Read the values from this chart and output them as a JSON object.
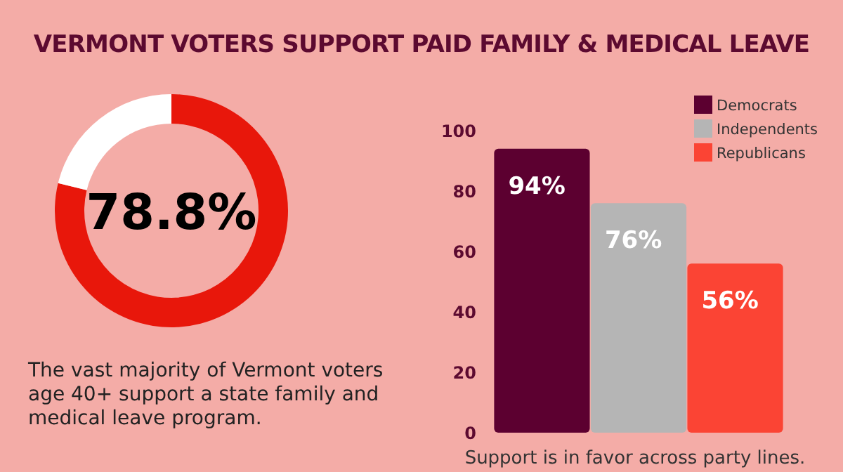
{
  "chart_data": [
    {
      "type": "donut",
      "title": "VERMONT VOTERS SUPPORT PAID FAMILY & MEDICAL LEAVE",
      "categories": [
        null,
        null
      ],
      "values": [
        78.8,
        21.2
      ],
      "colors": [
        "#e8170b",
        "#ffffff"
      ],
      "value_labels": [
        "78.8%",
        null
      ],
      "annotations": [
        "The vast majority of Vermont voters age 40+ support a state family and medical leave program."
      ]
    },
    {
      "type": "bar",
      "categories": [
        null
      ],
      "series": [
        {
          "name": "Democrats",
          "color": "#5c0030",
          "values": [
            94
          ],
          "value_labels": [
            "94%"
          ]
        },
        {
          "name": "Independents",
          "color": "#b5b5b5",
          "values": [
            76
          ],
          "value_labels": [
            "76%"
          ]
        },
        {
          "name": "Republicans",
          "color": "#fb4434",
          "values": [
            56
          ],
          "value_labels": [
            "56%"
          ]
        }
      ],
      "ylim": [
        0,
        100
      ],
      "yticks": [
        0,
        20,
        40,
        60,
        80,
        100
      ],
      "legend": "top right",
      "annotations": [
        "Support is in favor across party lines."
      ]
    }
  ]
}
